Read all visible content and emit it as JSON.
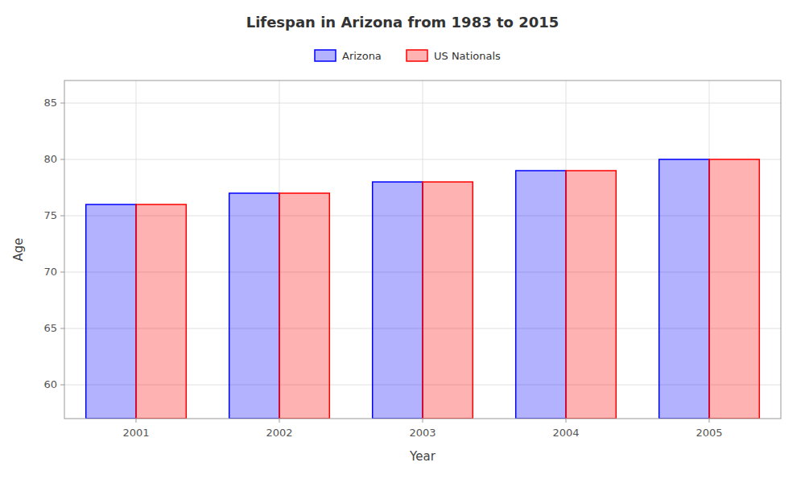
{
  "chart_data": {
    "type": "bar",
    "title": "Lifespan in Arizona from 1983 to 2015",
    "xlabel": "Year",
    "ylabel": "Age",
    "categories": [
      "2001",
      "2002",
      "2003",
      "2004",
      "2005"
    ],
    "series": [
      {
        "name": "Arizona",
        "color": "#0000ff",
        "values": [
          76,
          77,
          78,
          79,
          80
        ]
      },
      {
        "name": "US Nationals",
        "color": "#ff0000",
        "values": [
          76,
          77,
          78,
          79,
          80
        ]
      }
    ],
    "ylim": [
      57,
      87
    ],
    "yticks": [
      60,
      65,
      70,
      75,
      80,
      85
    ],
    "grid": true,
    "legend": "top"
  }
}
